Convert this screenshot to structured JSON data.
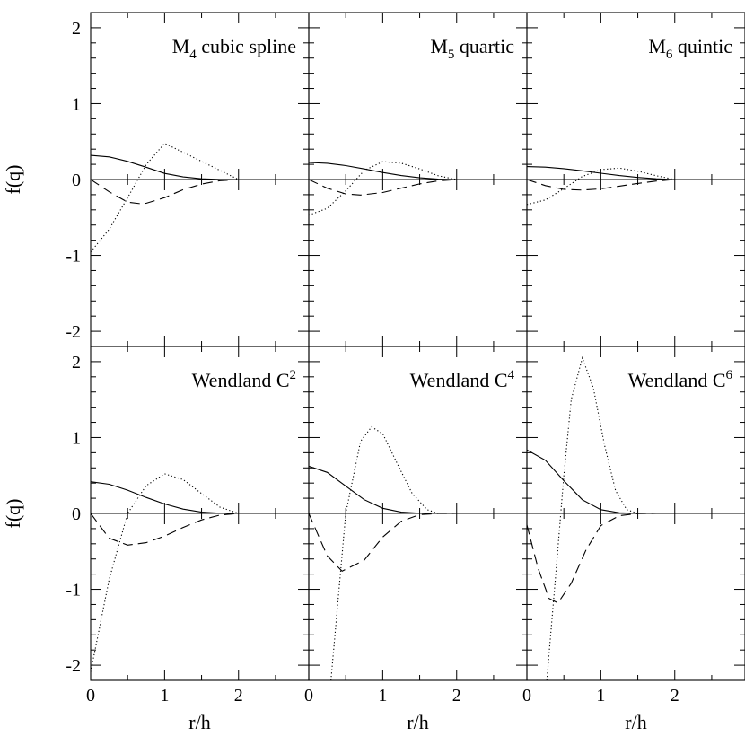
{
  "chart_data": {
    "type": "line",
    "grid": "3x2",
    "xlabel": "r/h",
    "ylabel": "f(q)",
    "xlim": [
      0,
      2.95
    ],
    "ylim": [
      -2.2,
      2.2
    ],
    "xticks": [
      0,
      1,
      2
    ],
    "yticks": [
      -2,
      -1,
      0,
      1,
      2
    ],
    "series_styles": [
      "solid",
      "dashed",
      "dotted"
    ],
    "panels": [
      {
        "title_main": "M",
        "title_sub": "4",
        "title_sup": "",
        "title_rest": " cubic spline",
        "series": [
          {
            "style": "solid",
            "x": [
              0,
              0.25,
              0.5,
              0.75,
              1.0,
              1.25,
              1.5,
              1.75,
              2.0
            ],
            "y": [
              0.318,
              0.298,
              0.239,
              0.162,
              0.08,
              0.034,
              0.01,
              0.001,
              0.0
            ]
          },
          {
            "style": "dashed",
            "x": [
              0,
              0.25,
              0.5,
              0.667,
              0.75,
              1.0,
              1.25,
              1.5,
              1.75,
              2.0
            ],
            "y": [
              0.0,
              -0.162,
              -0.299,
              -0.318,
              -0.313,
              -0.239,
              -0.134,
              -0.06,
              -0.015,
              0.0
            ]
          },
          {
            "style": "dotted",
            "x": [
              0,
              0.25,
              0.5,
              0.75,
              1.0,
              1.25,
              1.5,
              1.75,
              2.0
            ],
            "y": [
              -0.955,
              -0.656,
              -0.24,
              0.195,
              0.477,
              0.358,
              0.239,
              0.12,
              0.0
            ]
          }
        ]
      },
      {
        "title_main": "M",
        "title_sub": "5",
        "title_sup": "",
        "title_rest": " quartic",
        "series": [
          {
            "style": "solid",
            "x": [
              0,
              0.25,
              0.5,
              0.75,
              1.0,
              1.25,
              1.5,
              1.75,
              2.0
            ],
            "y": [
              0.225,
              0.214,
              0.183,
              0.139,
              0.092,
              0.052,
              0.022,
              0.005,
              0.0
            ]
          },
          {
            "style": "dashed",
            "x": [
              0,
              0.25,
              0.5,
              0.7,
              1.0,
              1.25,
              1.5,
              1.75,
              2.0
            ],
            "y": [
              0.0,
              -0.115,
              -0.19,
              -0.205,
              -0.172,
              -0.114,
              -0.058,
              -0.018,
              0.0
            ]
          },
          {
            "style": "dotted",
            "x": [
              0,
              0.25,
              0.5,
              0.75,
              1.0,
              1.25,
              1.5,
              1.75,
              2.0
            ],
            "y": [
              -0.47,
              -0.38,
              -0.15,
              0.12,
              0.235,
              0.215,
              0.14,
              0.05,
              0.0
            ]
          }
        ]
      },
      {
        "title_main": "M",
        "title_sub": "6",
        "title_sup": "",
        "title_rest": " quintic",
        "series": [
          {
            "style": "solid",
            "x": [
              0,
              0.25,
              0.5,
              0.75,
              1.0,
              1.25,
              1.5,
              1.75,
              2.0
            ],
            "y": [
              0.17,
              0.163,
              0.143,
              0.115,
              0.083,
              0.052,
              0.027,
              0.009,
              0.0
            ]
          },
          {
            "style": "dashed",
            "x": [
              0,
              0.25,
              0.5,
              0.75,
              1.0,
              1.25,
              1.5,
              1.75,
              2.0
            ],
            "y": [
              0.0,
              -0.08,
              -0.13,
              -0.14,
              -0.123,
              -0.088,
              -0.052,
              -0.02,
              0.0
            ]
          },
          {
            "style": "dotted",
            "x": [
              0,
              0.25,
              0.5,
              0.75,
              1.0,
              1.25,
              1.5,
              1.75,
              2.0
            ],
            "y": [
              -0.33,
              -0.27,
              -0.12,
              0.04,
              0.13,
              0.15,
              0.11,
              0.05,
              0.0
            ]
          }
        ]
      },
      {
        "title_main": "Wendland C",
        "title_sub": "",
        "title_sup": "2",
        "title_rest": "",
        "series": [
          {
            "style": "solid",
            "x": [
              0,
              0.25,
              0.5,
              0.75,
              1.0,
              1.25,
              1.5,
              1.75,
              2.0
            ],
            "y": [
              0.418,
              0.385,
              0.306,
              0.211,
              0.124,
              0.057,
              0.017,
              0.002,
              0.0
            ]
          },
          {
            "style": "dashed",
            "x": [
              0,
              0.25,
              0.5,
              0.75,
              1.0,
              1.25,
              1.5,
              1.75,
              2.0
            ],
            "y": [
              0.0,
              -0.327,
              -0.418,
              -0.386,
              -0.298,
              -0.185,
              -0.085,
              -0.021,
              0.0
            ]
          },
          {
            "style": "dotted",
            "x": [
              0,
              0.25,
              0.5,
              0.75,
              1.0,
              1.25,
              1.5,
              1.75,
              2.0
            ],
            "y": [
              -2.09,
              -0.87,
              0.0,
              0.366,
              0.522,
              0.446,
              0.261,
              0.082,
              0.0
            ]
          }
        ]
      },
      {
        "title_main": "Wendland C",
        "title_sub": "",
        "title_sup": "4",
        "title_rest": "",
        "series": [
          {
            "style": "solid",
            "x": [
              0,
              0.25,
              0.5,
              0.75,
              1.0,
              1.25,
              1.5,
              1.75,
              2.0
            ],
            "y": [
              0.622,
              0.54,
              0.36,
              0.181,
              0.068,
              0.016,
              0.002,
              0.0,
              0.0
            ]
          },
          {
            "style": "dashed",
            "x": [
              0,
              0.25,
              0.45,
              0.75,
              1.0,
              1.25,
              1.5,
              1.75,
              2.0
            ],
            "y": [
              0.0,
              -0.56,
              -0.76,
              -0.616,
              -0.311,
              -0.103,
              -0.017,
              -0.001,
              0.0
            ]
          },
          {
            "style": "dotted",
            "x": [
              0.3,
              0.5,
              0.7,
              0.85,
              1.0,
              1.2,
              1.4,
              1.6,
              1.75
            ],
            "y": [
              -2.2,
              0.0,
              0.95,
              1.14,
              1.05,
              0.65,
              0.26,
              0.05,
              0.0
            ]
          }
        ]
      },
      {
        "title_main": "Wendland C",
        "title_sub": "",
        "title_sup": "6",
        "title_rest": "",
        "series": [
          {
            "style": "solid",
            "x": [
              0,
              0.25,
              0.5,
              0.75,
              1.0,
              1.25,
              1.5,
              1.75,
              2.0
            ],
            "y": [
              0.838,
              0.7,
              0.43,
              0.18,
              0.05,
              0.008,
              0.001,
              0.0,
              0.0
            ]
          },
          {
            "style": "dashed",
            "x": [
              0,
              0.15,
              0.3,
              0.42,
              0.6,
              0.8,
              1.0,
              1.25,
              1.5,
              1.75
            ],
            "y": [
              -0.15,
              -0.72,
              -1.12,
              -1.18,
              -0.92,
              -0.48,
              -0.16,
              -0.03,
              -0.002,
              0.0
            ]
          },
          {
            "style": "dotted",
            "x": [
              0.27,
              0.4,
              0.5,
              0.6,
              0.75,
              0.9,
              1.05,
              1.2,
              1.35,
              1.5
            ],
            "y": [
              -2.2,
              -0.7,
              0.5,
              1.5,
              2.05,
              1.65,
              0.9,
              0.3,
              0.05,
              0.0
            ]
          }
        ]
      }
    ]
  }
}
